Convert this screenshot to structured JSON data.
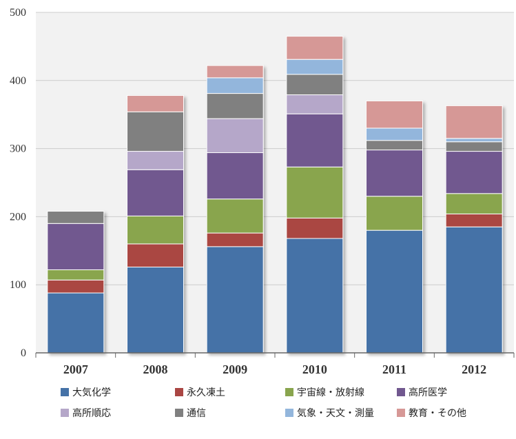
{
  "chart_data": {
    "type": "bar",
    "stacked": true,
    "categories": [
      "2007",
      "2008",
      "2009",
      "2010",
      "2011",
      "2012"
    ],
    "ylim": [
      0,
      500
    ],
    "yticks": [
      "0",
      "100",
      "200",
      "300",
      "400",
      "500"
    ],
    "grid": true,
    "legend_position": "bottom",
    "series": [
      {
        "name": "大気化学",
        "color": "#4572A7",
        "values": [
          88,
          126,
          156,
          168,
          180,
          185
        ]
      },
      {
        "name": "永久凍土",
        "color": "#AA4643",
        "values": [
          19,
          34,
          20,
          30,
          0,
          19
        ]
      },
      {
        "name": "宇宙線・放射線",
        "color": "#89A54E",
        "values": [
          15,
          41,
          50,
          75,
          50,
          30
        ]
      },
      {
        "name": "高所医学",
        "color": "#71588F",
        "values": [
          68,
          68,
          68,
          78,
          68,
          62
        ]
      },
      {
        "name": "高所順応",
        "color": "#B5A7C9",
        "values": [
          0,
          27,
          50,
          28,
          0,
          0
        ]
      },
      {
        "name": "通信",
        "color": "#808080",
        "values": [
          18,
          58,
          37,
          30,
          14,
          14
        ]
      },
      {
        "name": "気象・天文・測量",
        "color": "#93B6DC",
        "values": [
          0,
          0,
          23,
          22,
          18,
          5
        ]
      },
      {
        "name": "教育・その他",
        "color": "#D69896",
        "values": [
          0,
          24,
          18,
          34,
          40,
          48
        ]
      }
    ]
  }
}
